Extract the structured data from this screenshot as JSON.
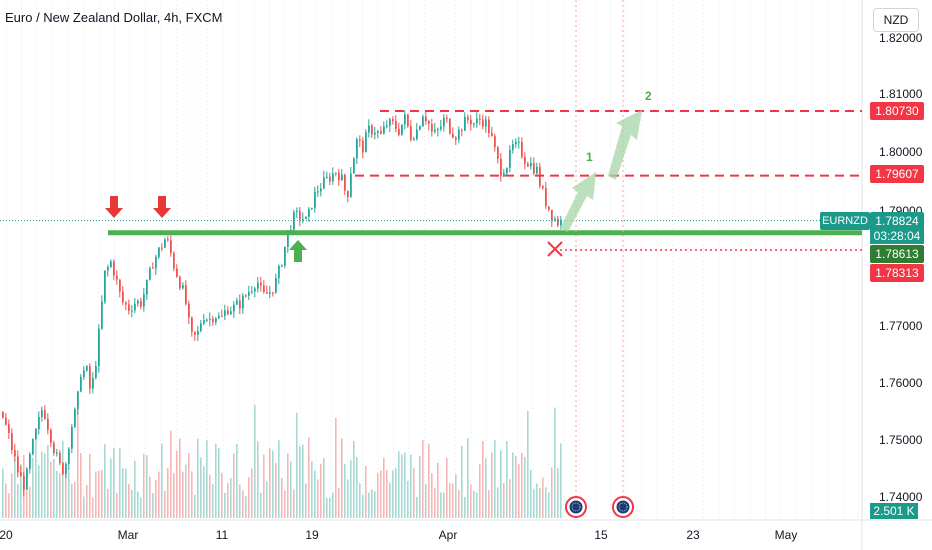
{
  "header": {
    "title": "Euro / New Zealand Dollar, 4h, FXCM",
    "currency_button": "NZD"
  },
  "price_axis": {
    "labels": [
      "1.82000",
      "1.81000",
      "1.80000",
      "1.79000",
      "1.77000",
      "1.76000",
      "1.75000",
      "1.74000"
    ]
  },
  "time_axis": {
    "labels": [
      "20",
      "Mar",
      "11",
      "19",
      "Apr",
      "15",
      "23",
      "May"
    ]
  },
  "tags": {
    "symbol": "EURNZD",
    "last_price": "1.78824",
    "countdown": "03:28:04",
    "support": "1.78613",
    "stop": "1.78313",
    "target1": "1.79607",
    "target2": "1.80730",
    "volume": "2.501 K"
  },
  "annotations": {
    "target1_label": "1",
    "target2_label": "2"
  },
  "colors": {
    "up": "#26a69a",
    "down": "#ef5350",
    "support_line": "#4caf50",
    "resistance_line": "#f23645",
    "last_price": "#1b9a8a"
  },
  "chart_data": {
    "type": "candlestick",
    "symbol": "EURNZD",
    "timeframe": "4h",
    "source": "FXCM",
    "ylim": [
      1.7385,
      1.8225
    ],
    "levels": {
      "support": 1.78613,
      "stop": 1.78313,
      "target1": 1.79607,
      "target2": 1.8073,
      "last": 1.78824
    },
    "close_path": [
      [
        0,
        1.755
      ],
      [
        6,
        1.752
      ],
      [
        12,
        1.748
      ],
      [
        18,
        1.744
      ],
      [
        24,
        1.742
      ],
      [
        30,
        1.748
      ],
      [
        36,
        1.752
      ],
      [
        42,
        1.756
      ],
      [
        48,
        1.752
      ],
      [
        54,
        1.748
      ],
      [
        60,
        1.745
      ],
      [
        64,
        1.745
      ],
      [
        70,
        1.752
      ],
      [
        76,
        1.756
      ],
      [
        80,
        1.762
      ],
      [
        86,
        1.762
      ],
      [
        90,
        1.758
      ],
      [
        96,
        1.765
      ],
      [
        100,
        1.772
      ],
      [
        104,
        1.779
      ],
      [
        110,
        1.781
      ],
      [
        114,
        1.779
      ],
      [
        118,
        1.776
      ],
      [
        122,
        1.774
      ],
      [
        128,
        1.773
      ],
      [
        134,
        1.774
      ],
      [
        140,
        1.774
      ],
      [
        146,
        1.777
      ],
      [
        152,
        1.781
      ],
      [
        158,
        1.783
      ],
      [
        164,
        1.785
      ],
      [
        168,
        1.784
      ],
      [
        172,
        1.781
      ],
      [
        178,
        1.778
      ],
      [
        184,
        1.775
      ],
      [
        190,
        1.768
      ],
      [
        196,
        1.768
      ],
      [
        202,
        1.772
      ],
      [
        208,
        1.771
      ],
      [
        214,
        1.772
      ],
      [
        220,
        1.771
      ],
      [
        226,
        1.773
      ],
      [
        232,
        1.773
      ],
      [
        240,
        1.774
      ],
      [
        248,
        1.776
      ],
      [
        256,
        1.778
      ],
      [
        262,
        1.775
      ],
      [
        270,
        1.776
      ],
      [
        276,
        1.778
      ],
      [
        282,
        1.782
      ],
      [
        288,
        1.787
      ],
      [
        294,
        1.789
      ],
      [
        300,
        1.789
      ],
      [
        306,
        1.788
      ],
      [
        312,
        1.792
      ],
      [
        318,
        1.794
      ],
      [
        324,
        1.795
      ],
      [
        330,
        1.796
      ],
      [
        336,
        1.797
      ],
      [
        342,
        1.795
      ],
      [
        346,
        1.792
      ],
      [
        350,
        1.797
      ],
      [
        356,
        1.802
      ],
      [
        362,
        1.801
      ],
      [
        368,
        1.804
      ],
      [
        374,
        1.804
      ],
      [
        380,
        1.803
      ],
      [
        386,
        1.805
      ],
      [
        392,
        1.805
      ],
      [
        398,
        1.804
      ],
      [
        404,
        1.806
      ],
      [
        410,
        1.803
      ],
      [
        416,
        1.804
      ],
      [
        422,
        1.807
      ],
      [
        426,
        1.806
      ],
      [
        432,
        1.803
      ],
      [
        438,
        1.804
      ],
      [
        444,
        1.806
      ],
      [
        450,
        1.804
      ],
      [
        456,
        1.803
      ],
      [
        462,
        1.805
      ],
      [
        468,
        1.806
      ],
      [
        474,
        1.805
      ],
      [
        480,
        1.806
      ],
      [
        486,
        1.805
      ],
      [
        490,
        1.803
      ],
      [
        496,
        1.799
      ],
      [
        500,
        1.797
      ],
      [
        506,
        1.798
      ],
      [
        512,
        1.801
      ],
      [
        518,
        1.801
      ],
      [
        524,
        1.799
      ],
      [
        530,
        1.798
      ],
      [
        536,
        1.797
      ],
      [
        540,
        1.794
      ],
      [
        546,
        1.791
      ],
      [
        552,
        1.789
      ],
      [
        556,
        1.788
      ],
      [
        560,
        1.788
      ]
    ]
  }
}
